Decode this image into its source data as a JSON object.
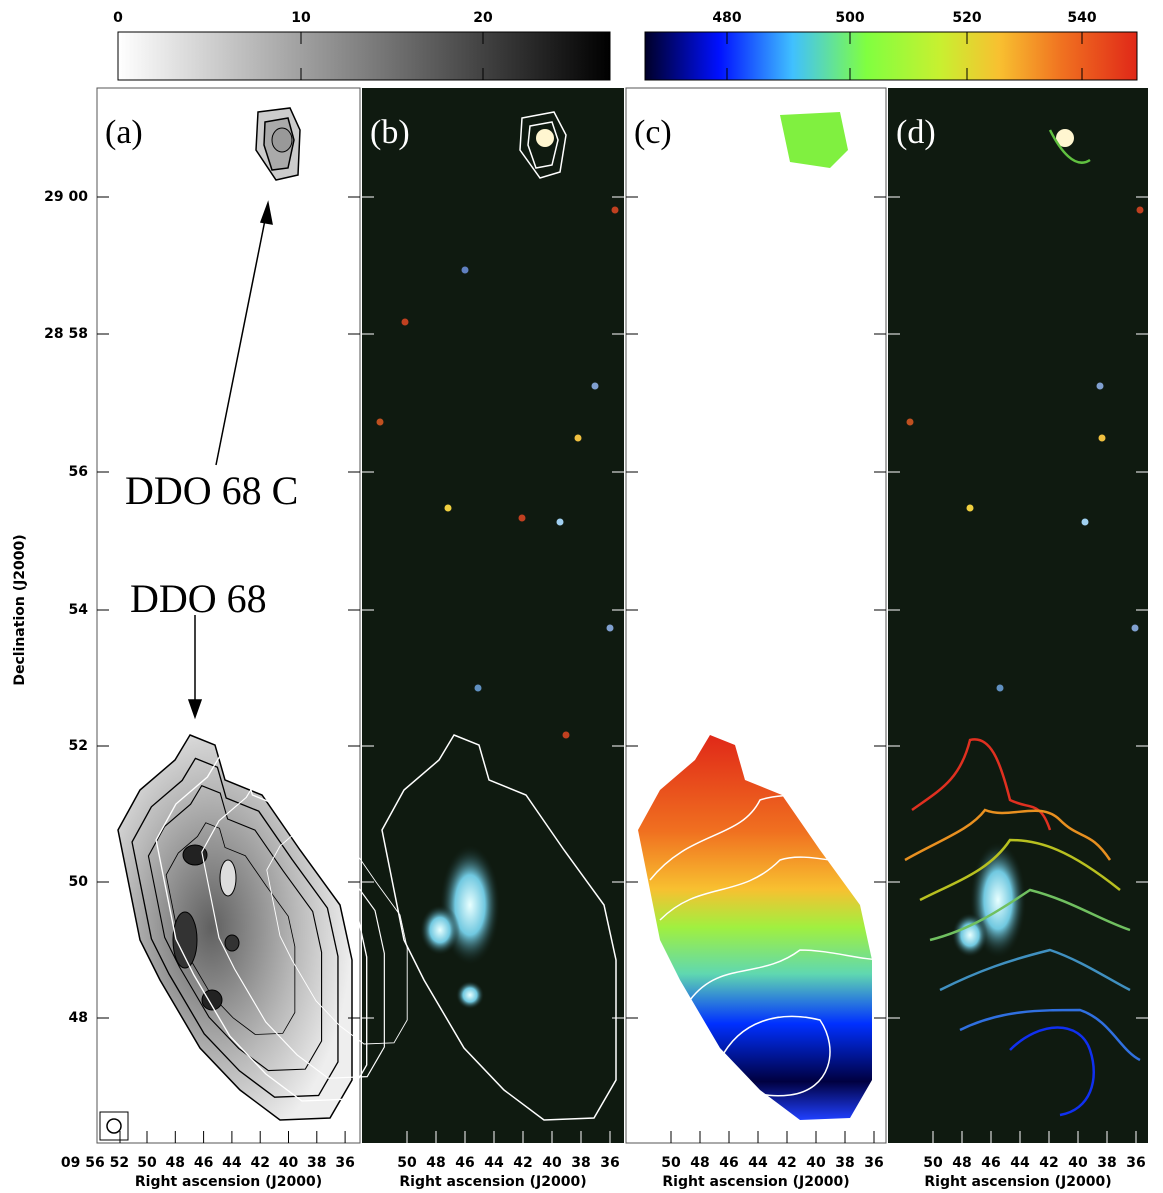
{
  "colorbars": [
    {
      "ticks": [
        0,
        10,
        20
      ]
    },
    {
      "ticks": [
        480,
        500,
        520,
        540
      ]
    }
  ],
  "panels": [
    {
      "label": "(a)",
      "x_ticks": [
        "09 56 52",
        "50",
        "48",
        "46",
        "44",
        "42",
        "40",
        "38",
        "36"
      ],
      "x_label": "Right ascension (J2000)"
    },
    {
      "label": "(b)",
      "x_ticks": [
        "50",
        "48",
        "46",
        "44",
        "42",
        "40",
        "38",
        "36"
      ],
      "x_label": "Right ascension (J2000)"
    },
    {
      "label": "(c)",
      "x_ticks": [
        "50",
        "48",
        "46",
        "44",
        "42",
        "40",
        "38",
        "36"
      ],
      "x_label": "Right ascension (J2000)"
    },
    {
      "label": "(d)",
      "x_ticks": [
        "50",
        "48",
        "46",
        "44",
        "42",
        "40",
        "38",
        "36"
      ],
      "x_label": "Right ascension (J2000)"
    }
  ],
  "y_axis": {
    "label": "Declination (J2000)",
    "ticks": [
      "29 00",
      "28 58",
      "56",
      "54",
      "52",
      "50",
      "48"
    ]
  },
  "annotations": [
    "DDO 68 C",
    "DDO 68"
  ]
}
